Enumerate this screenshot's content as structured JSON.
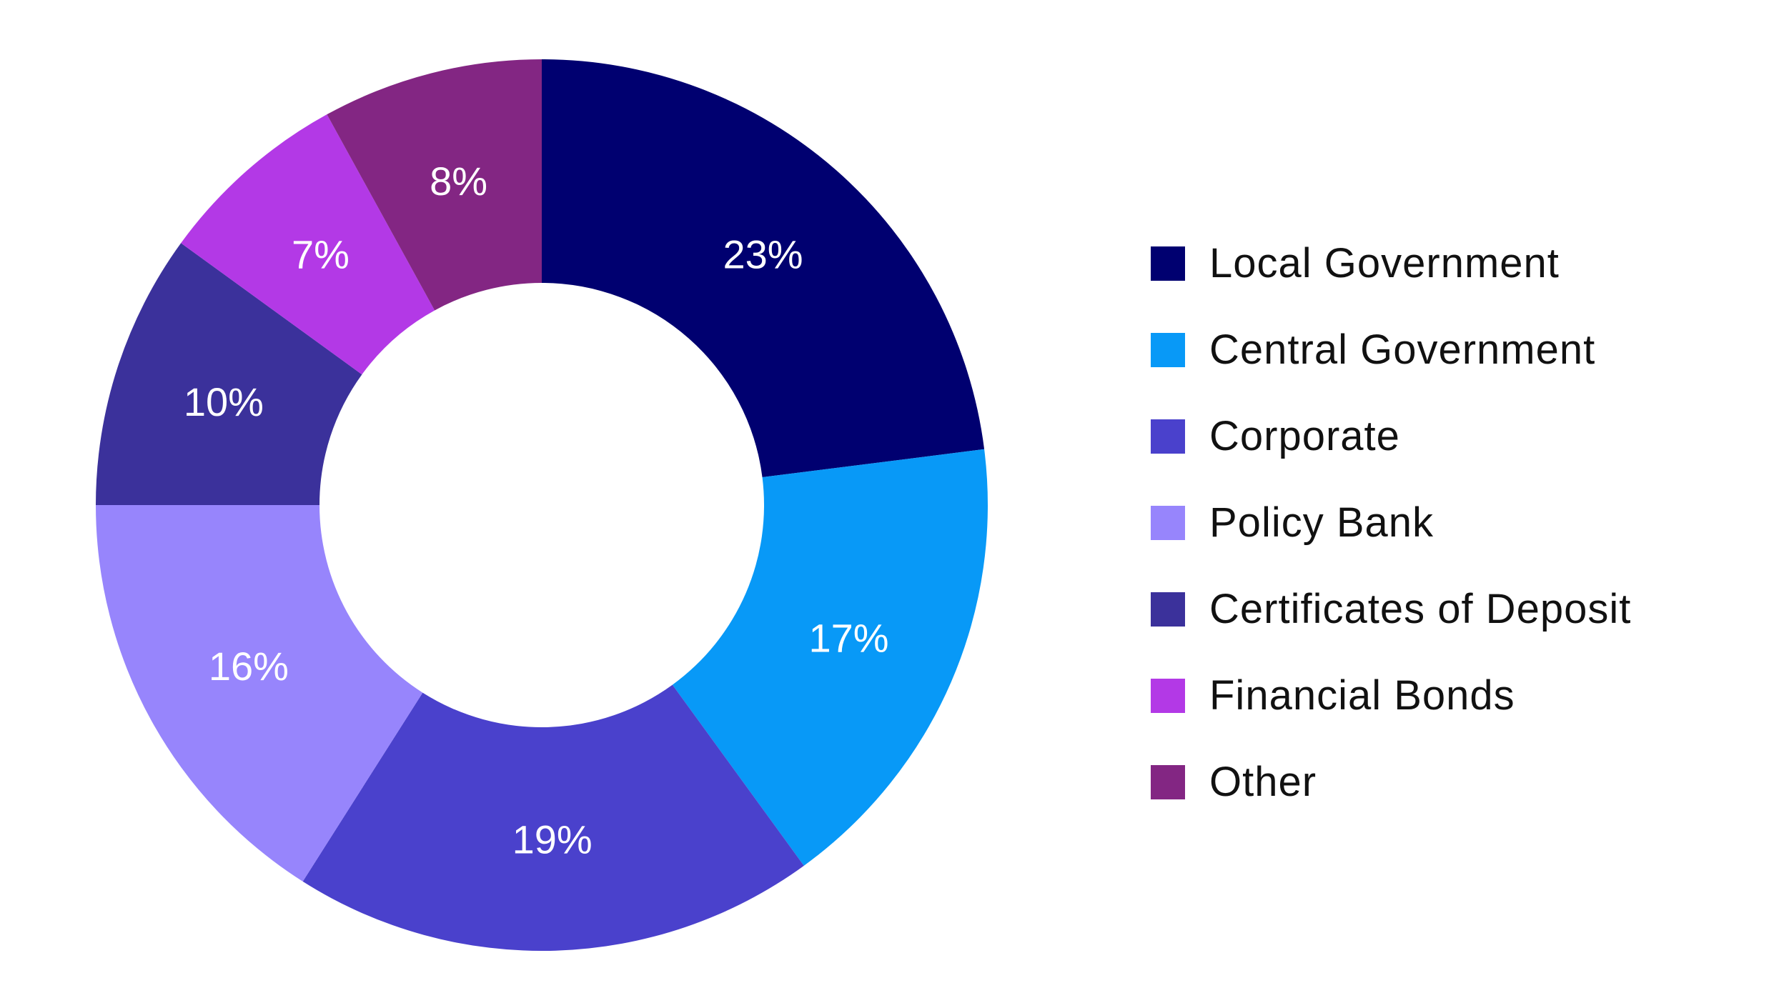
{
  "chart_data": {
    "type": "pie",
    "title": "",
    "subtitle": "",
    "donut": true,
    "legend_position": "right",
    "slices": [
      {
        "name": "Local Government",
        "value": 23,
        "label": "23%",
        "color": "#000070"
      },
      {
        "name": "Central Government",
        "value": 17,
        "label": "17%",
        "color": "#0899f7"
      },
      {
        "name": "Corporate",
        "value": 19,
        "label": "19%",
        "color": "#4a41cc"
      },
      {
        "name": "Policy Bank",
        "value": 16,
        "label": "16%",
        "color": "#9785fc"
      },
      {
        "name": "Certificates of Deposit",
        "value": 10,
        "label": "10%",
        "color": "#3b319b"
      },
      {
        "name": "Financial Bonds",
        "value": 7,
        "label": "7%",
        "color": "#b339e6"
      },
      {
        "name": "Other",
        "value": 8,
        "label": "8%",
        "color": "#832683"
      }
    ]
  }
}
